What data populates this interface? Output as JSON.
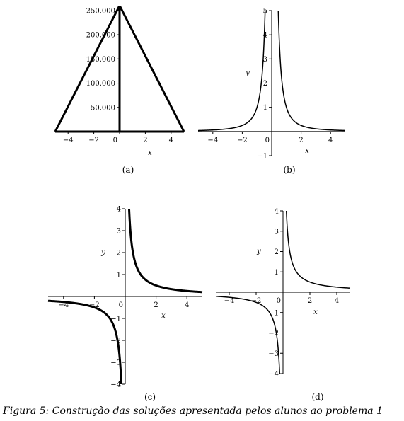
{
  "caption": "Figura 5:  Construção das soluções apresentada pelos alunos ao problema 1",
  "chart_data": [
    {
      "type": "line",
      "panel_label": "(a)",
      "xlabel": "x",
      "ylabel": "",
      "xlim": [
        -5,
        5
      ],
      "ylim": [
        0,
        260000
      ],
      "x_ticks": [
        -4,
        -2,
        0,
        2,
        4
      ],
      "y_ticks": [
        50000,
        100000,
        150000,
        200000,
        250000
      ],
      "y_tick_labels": [
        "50.000",
        "100.000",
        "150.000",
        "200.000",
        "250.000"
      ],
      "series": [
        {
          "x": [
            -5,
            -0.004,
            0.004,
            5
          ],
          "y": [
            0,
            260000,
            260000,
            0
          ]
        }
      ]
    },
    {
      "type": "line",
      "panel_label": "(b)",
      "xlabel": "x",
      "ylabel": "y",
      "xlim": [
        -5,
        5
      ],
      "ylim": [
        -1,
        5
      ],
      "x_ticks": [
        -4,
        -2,
        0,
        2,
        4
      ],
      "y_ticks": [
        -1,
        1,
        2,
        3,
        4,
        5
      ],
      "series": [
        {
          "function": "1/x^2",
          "x": [
            -5,
            -3,
            -2,
            -1,
            -0.7,
            -0.5,
            0.5,
            0.7,
            1,
            2,
            3,
            5
          ],
          "y": [
            0.04,
            0.11,
            0.25,
            1,
            2.04,
            4,
            4,
            2.04,
            1,
            0.25,
            0.11,
            0.04
          ]
        }
      ]
    },
    {
      "type": "line",
      "panel_label": "(c)",
      "xlabel": "x",
      "ylabel": "y",
      "xlim": [
        -5,
        5
      ],
      "ylim": [
        -4,
        4
      ],
      "x_ticks": [
        -4,
        -2,
        0,
        2,
        4
      ],
      "y_ticks": [
        -4,
        -3,
        -2,
        -1,
        1,
        2,
        3,
        4
      ],
      "series": [
        {
          "function": "1/x",
          "x": [
            -5,
            -3,
            -2,
            -1,
            -0.5,
            -0.25,
            0.25,
            0.5,
            1,
            2,
            3,
            5
          ],
          "y": [
            -0.2,
            -0.33,
            -0.5,
            -1,
            -2,
            -4,
            4,
            2,
            1,
            0.5,
            0.33,
            0.2
          ]
        }
      ]
    },
    {
      "type": "line",
      "panel_label": "(d)",
      "xlabel": "x",
      "ylabel": "y",
      "xlim": [
        -5,
        5
      ],
      "ylim": [
        -4,
        4
      ],
      "x_ticks": [
        -4,
        -2,
        0,
        2,
        4
      ],
      "y_ticks": [
        -4,
        -3,
        -2,
        -1,
        1,
        2,
        3,
        4
      ],
      "series": [
        {
          "function": "1/x",
          "x": [
            -5,
            -3,
            -2,
            -1,
            -0.5,
            -0.25,
            0.25,
            0.5,
            1,
            2,
            3,
            5
          ],
          "y": [
            -0.2,
            -0.33,
            -0.5,
            -1,
            -2,
            -4,
            4,
            2,
            1,
            0.5,
            0.33,
            0.2
          ]
        }
      ]
    }
  ]
}
